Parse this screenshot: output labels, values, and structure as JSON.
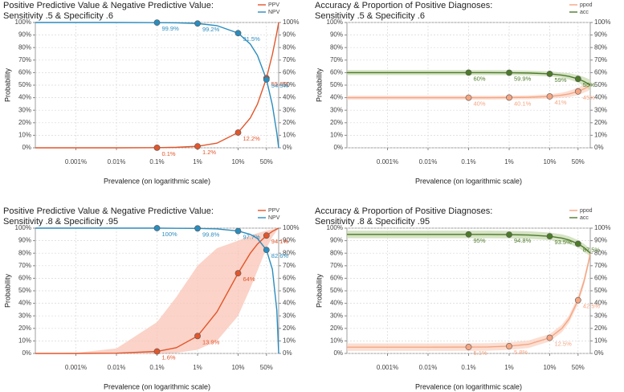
{
  "chart_data": [
    {
      "type": "line",
      "title": "Positive Predictive Value & Negative Predictive Value:",
      "subtitle": "Sensitivity .5 & Specificity .6",
      "x_label": "Prevalence (on logarithmic scale)",
      "y_label": "Probability",
      "log_x": true,
      "grid": true,
      "legend": "top-right",
      "x": [
        0.0001,
        0.001,
        0.01,
        0.1,
        0.3,
        1,
        3,
        10,
        20,
        30,
        50,
        70,
        90,
        100
      ],
      "xlim": [
        0.0001,
        100
      ],
      "xticks": [
        {
          "value": 0.001,
          "label": "0.001%"
        },
        {
          "value": 0.01,
          "label": "0.01%"
        },
        {
          "value": 0.1,
          "label": "0.1%"
        },
        {
          "value": 1,
          "label": "1%"
        },
        {
          "value": 10,
          "label": "10%"
        },
        {
          "value": 50,
          "label": "50%"
        }
      ],
      "ylim": [
        0,
        100
      ],
      "yticks": [
        {
          "value": 0,
          "label": "0%"
        },
        {
          "value": 10,
          "label": "10%"
        },
        {
          "value": 20,
          "label": "20%"
        },
        {
          "value": 30,
          "label": "30%"
        },
        {
          "value": 40,
          "label": "40%"
        },
        {
          "value": 50,
          "label": "50%"
        },
        {
          "value": 60,
          "label": "60%"
        },
        {
          "value": 70,
          "label": "70%"
        },
        {
          "value": 80,
          "label": "80%"
        },
        {
          "value": 90,
          "label": "90%"
        },
        {
          "value": 100,
          "label": "100%"
        }
      ],
      "series": [
        {
          "name": "PPV",
          "color": "#e2562c",
          "values": [
            0,
            0,
            0,
            0.1,
            0.4,
            1.2,
            3.7,
            12.2,
            23.8,
            34.9,
            55.6,
            74.5,
            91.8,
            100
          ],
          "value_labels": [
            null,
            null,
            null,
            "0.1%",
            null,
            "1.2%",
            null,
            "12.2%",
            null,
            null,
            "55.6%",
            null,
            null,
            null
          ]
        },
        {
          "name": "NPV",
          "color": "#2b8cbe",
          "values": [
            100,
            100,
            100,
            99.9,
            99.7,
            99.2,
            97.5,
            91.5,
            82.8,
            73.7,
            54.5,
            34,
            11.8,
            0
          ],
          "value_labels": [
            null,
            null,
            null,
            "99.9%",
            null,
            "99.2%",
            null,
            "91.5%",
            null,
            null,
            "54.5%",
            null,
            null,
            null
          ]
        }
      ]
    },
    {
      "type": "line",
      "title": "Accuracy & Proportion of Positive Diagnoses:",
      "subtitle": "Sensitivity .5 & Specificity .6",
      "x_label": "Prevalence (on logarithmic scale)",
      "y_label": "Probability",
      "log_x": true,
      "grid": true,
      "legend": "top-right",
      "x": [
        0.0001,
        0.001,
        0.01,
        0.1,
        0.3,
        1,
        3,
        10,
        20,
        30,
        50,
        70,
        90,
        100
      ],
      "xlim": [
        0.0001,
        100
      ],
      "xticks": [
        {
          "value": 0.001,
          "label": "0.001%"
        },
        {
          "value": 0.01,
          "label": "0.01%"
        },
        {
          "value": 0.1,
          "label": "0.1%"
        },
        {
          "value": 1,
          "label": "1%"
        },
        {
          "value": 10,
          "label": "10%"
        },
        {
          "value": 50,
          "label": "50%"
        }
      ],
      "ylim": [
        0,
        100
      ],
      "yticks": [
        {
          "value": 0,
          "label": "0%"
        },
        {
          "value": 10,
          "label": "10%"
        },
        {
          "value": 20,
          "label": "20%"
        },
        {
          "value": 30,
          "label": "30%"
        },
        {
          "value": 40,
          "label": "40%"
        },
        {
          "value": 50,
          "label": "50%"
        },
        {
          "value": 60,
          "label": "60%"
        },
        {
          "value": 70,
          "label": "70%"
        },
        {
          "value": 80,
          "label": "80%"
        },
        {
          "value": 90,
          "label": "90%"
        },
        {
          "value": 100,
          "label": "100%"
        }
      ],
      "series": [
        {
          "name": "ppod",
          "color": "#f4a582",
          "band_color": "#fbd3c3",
          "values": [
            40,
            40,
            40,
            40,
            40,
            40.1,
            40.3,
            41,
            42,
            43,
            45,
            47,
            49,
            50
          ],
          "lower": [
            38.5,
            38.5,
            38.5,
            38.5,
            38.5,
            38.6,
            38.8,
            39.3,
            40,
            40.5,
            42,
            44,
            45.5,
            46.5
          ],
          "upper": [
            41.5,
            41.5,
            41.5,
            41.5,
            41.5,
            41.6,
            41.8,
            42.7,
            44,
            45.5,
            48,
            50.5,
            52.5,
            53.5
          ],
          "value_labels": [
            null,
            null,
            null,
            "40%",
            null,
            "40.1%",
            null,
            "41%",
            null,
            null,
            "45%",
            null,
            null,
            null
          ]
        },
        {
          "name": "acc",
          "color": "#4d7a2a",
          "band_color": "#c7d9b0",
          "values": [
            60,
            60,
            60,
            60,
            60,
            59.9,
            59.7,
            59,
            58,
            57,
            55,
            53,
            51,
            50
          ],
          "lower": [
            58,
            58,
            58,
            58,
            58,
            58,
            57.8,
            57,
            56,
            54.5,
            52,
            49.5,
            47,
            45.5
          ],
          "upper": [
            62,
            62,
            62,
            62,
            62,
            61.9,
            61.6,
            61,
            60,
            59.5,
            58,
            56.5,
            55,
            54.5
          ],
          "value_labels": [
            null,
            null,
            null,
            "60%",
            null,
            "59.9%",
            null,
            "59%",
            null,
            null,
            "55%",
            null,
            null,
            null
          ]
        }
      ]
    },
    {
      "type": "line",
      "title": "Positive Predictive Value & Negative Predictive Value:",
      "subtitle": "Sensitivity .8 & Specificity .95",
      "x_label": "Prevalence (on logarithmic scale)",
      "y_label": "Probability",
      "log_x": true,
      "grid": true,
      "legend": "top-right",
      "x": [
        0.0001,
        0.001,
        0.01,
        0.1,
        0.3,
        1,
        3,
        10,
        20,
        30,
        50,
        70,
        90,
        100
      ],
      "xlim": [
        0.0001,
        100
      ],
      "xticks": [
        {
          "value": 0.001,
          "label": "0.001%"
        },
        {
          "value": 0.01,
          "label": "0.01%"
        },
        {
          "value": 0.1,
          "label": "0.1%"
        },
        {
          "value": 1,
          "label": "1%"
        },
        {
          "value": 10,
          "label": "10%"
        },
        {
          "value": 50,
          "label": "50%"
        }
      ],
      "ylim": [
        0,
        100
      ],
      "yticks": [
        {
          "value": 0,
          "label": "0%"
        },
        {
          "value": 10,
          "label": "10%"
        },
        {
          "value": 20,
          "label": "20%"
        },
        {
          "value": 30,
          "label": "30%"
        },
        {
          "value": 40,
          "label": "40%"
        },
        {
          "value": 50,
          "label": "50%"
        },
        {
          "value": 60,
          "label": "60%"
        },
        {
          "value": 70,
          "label": "70%"
        },
        {
          "value": 80,
          "label": "80%"
        },
        {
          "value": 90,
          "label": "90%"
        },
        {
          "value": 100,
          "label": "100%"
        }
      ],
      "series": [
        {
          "name": "PPV",
          "color": "#e2562c",
          "band_color": "#f9c4b5",
          "values": [
            0,
            0,
            0.2,
            1.6,
            4.6,
            13.9,
            33.1,
            64,
            80,
            87.3,
            94.1,
            97.4,
            99.3,
            100
          ],
          "lower": [
            0,
            0,
            0,
            0,
            0.5,
            3,
            10,
            30,
            52,
            66,
            84,
            93,
            98,
            100
          ],
          "upper": [
            0,
            0.5,
            4,
            25,
            45,
            70,
            84,
            90,
            94,
            96,
            98,
            99,
            99.7,
            100
          ],
          "value_labels": [
            null,
            null,
            null,
            "1.6%",
            null,
            "13.9%",
            null,
            "64%",
            null,
            null,
            "94.1%",
            null,
            null,
            null
          ]
        },
        {
          "name": "NPV",
          "color": "#2b8cbe",
          "values": [
            100,
            100,
            100,
            100,
            99.9,
            99.8,
            99.4,
            97.7,
            95,
            91.7,
            82.6,
            67.1,
            34.5,
            0
          ],
          "value_labels": [
            null,
            null,
            null,
            "100%",
            null,
            "99.8%",
            null,
            "97.7%",
            null,
            null,
            "82.6%",
            null,
            null,
            null
          ]
        }
      ]
    },
    {
      "type": "line",
      "title": "Accuracy & Proportion of Positive Diagnoses:",
      "subtitle": "Sensitivity .8 & Specificity .95",
      "x_label": "Prevalence (on logarithmic scale)",
      "y_label": "Probability",
      "log_x": true,
      "grid": true,
      "legend": "top-right",
      "x": [
        0.0001,
        0.001,
        0.01,
        0.1,
        0.3,
        1,
        3,
        10,
        20,
        30,
        50,
        70,
        90,
        100
      ],
      "xlim": [
        0.0001,
        100
      ],
      "xticks": [
        {
          "value": 0.001,
          "label": "0.001%"
        },
        {
          "value": 0.01,
          "label": "0.01%"
        },
        {
          "value": 0.1,
          "label": "0.1%"
        },
        {
          "value": 1,
          "label": "1%"
        },
        {
          "value": 10,
          "label": "10%"
        },
        {
          "value": 50,
          "label": "50%"
        }
      ],
      "ylim": [
        0,
        100
      ],
      "yticks": [
        {
          "value": 0,
          "label": "0%"
        },
        {
          "value": 10,
          "label": "10%"
        },
        {
          "value": 20,
          "label": "20%"
        },
        {
          "value": 30,
          "label": "30%"
        },
        {
          "value": 40,
          "label": "40%"
        },
        {
          "value": 50,
          "label": "50%"
        },
        {
          "value": 60,
          "label": "60%"
        },
        {
          "value": 70,
          "label": "70%"
        },
        {
          "value": 80,
          "label": "80%"
        },
        {
          "value": 90,
          "label": "90%"
        },
        {
          "value": 100,
          "label": "100%"
        }
      ],
      "series": [
        {
          "name": "ppod",
          "color": "#f4a582",
          "band_color": "#fbd3c3",
          "values": [
            5,
            5,
            5,
            5.1,
            5.2,
            5.8,
            7.3,
            12.5,
            20,
            27.5,
            42.5,
            57.5,
            72.5,
            80
          ],
          "lower": [
            2,
            2,
            2,
            2.1,
            2.2,
            2.8,
            4.3,
            9.5,
            17,
            24.5,
            39.5,
            54.5,
            69.5,
            77
          ],
          "upper": [
            8,
            8,
            8,
            8.1,
            8.2,
            8.8,
            10.3,
            15.5,
            23,
            30.5,
            45.5,
            60.5,
            75.5,
            83
          ],
          "value_labels": [
            null,
            null,
            null,
            "5.1%",
            null,
            "5.8%",
            null,
            "12.5%",
            null,
            null,
            "42.5%",
            null,
            null,
            null
          ]
        },
        {
          "name": "acc",
          "color": "#4d7a2a",
          "band_color": "#c7d9b0",
          "values": [
            95,
            95,
            95,
            95,
            95,
            94.8,
            94.5,
            93.5,
            92,
            90.5,
            87.5,
            84.5,
            81.5,
            80
          ],
          "lower": [
            92,
            92,
            92,
            92,
            92,
            91.8,
            91.5,
            90.5,
            89,
            87.5,
            84.5,
            81.5,
            78.5,
            77
          ],
          "upper": [
            98,
            98,
            98,
            98,
            98,
            97.8,
            97.5,
            96.5,
            95,
            93.5,
            90.5,
            87.5,
            84.5,
            83
          ],
          "value_labels": [
            null,
            null,
            null,
            "95%",
            null,
            "94.8%",
            null,
            "93.5%",
            null,
            null,
            "87.5%",
            null,
            null,
            null
          ]
        }
      ]
    }
  ]
}
